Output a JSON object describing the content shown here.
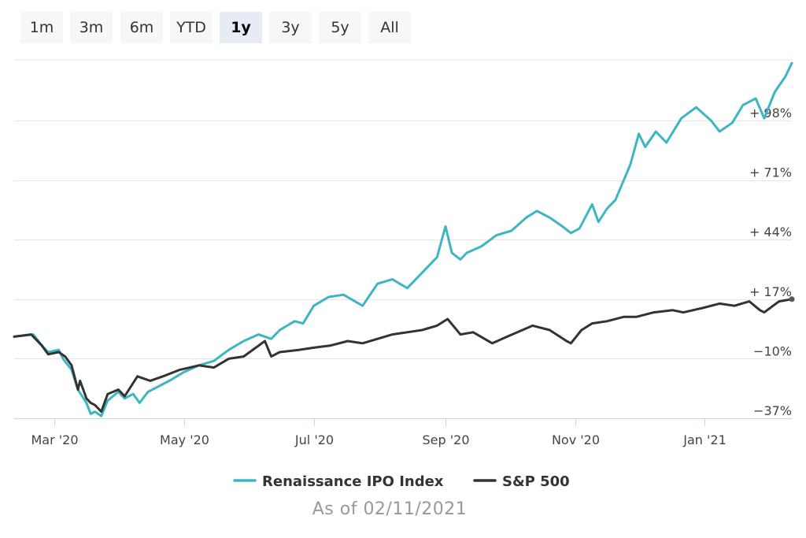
{
  "range_buttons": [
    {
      "label": "1m",
      "selected": false
    },
    {
      "label": "3m",
      "selected": false
    },
    {
      "label": "6m",
      "selected": false
    },
    {
      "label": "YTD",
      "selected": false
    },
    {
      "label": "1y",
      "selected": true
    },
    {
      "label": "3y",
      "selected": false
    },
    {
      "label": "5y",
      "selected": false
    },
    {
      "label": "All",
      "selected": false
    }
  ],
  "footer": {
    "as_of": "As of 02/11/2021"
  },
  "chart_data": {
    "type": "line",
    "title": "",
    "xlabel": "",
    "ylabel": "",
    "x_tick_labels": [
      "Mar '20",
      "May '20",
      "Jul '20",
      "Sep '20",
      "Nov '20",
      "Jan '21"
    ],
    "x_tick_dates": [
      "2020-03-01",
      "2020-05-01",
      "2020-07-01",
      "2020-09-01",
      "2020-11-01",
      "2021-01-01"
    ],
    "y_tick_labels": [
      "−37%",
      "−10%",
      "+ 17%",
      "+ 44%",
      "+ 71%",
      "+ 98%"
    ],
    "y_tick_values": [
      -37,
      -10,
      17,
      44,
      71,
      98
    ],
    "xlim": [
      "2020-02-11",
      "2021-02-11"
    ],
    "ylim": [
      -37,
      125
    ],
    "grid": true,
    "legend_position": "bottom-center",
    "series": [
      {
        "name": "Renaissance IPO Index",
        "color": "#3db5c3",
        "points": [
          [
            "2020-02-11",
            0
          ],
          [
            "2020-02-20",
            1
          ],
          [
            "2020-02-24",
            -4
          ],
          [
            "2020-02-27",
            -7
          ],
          [
            "2020-03-03",
            -6
          ],
          [
            "2020-03-05",
            -10
          ],
          [
            "2020-03-09",
            -15
          ],
          [
            "2020-03-12",
            -24
          ],
          [
            "2020-03-16",
            -30
          ],
          [
            "2020-03-18",
            -35
          ],
          [
            "2020-03-20",
            -34
          ],
          [
            "2020-03-23",
            -36
          ],
          [
            "2020-03-26",
            -29
          ],
          [
            "2020-03-31",
            -25
          ],
          [
            "2020-04-03",
            -28
          ],
          [
            "2020-04-07",
            -26
          ],
          [
            "2020-04-10",
            -30
          ],
          [
            "2020-04-14",
            -25
          ],
          [
            "2020-04-20",
            -22
          ],
          [
            "2020-04-24",
            -20
          ],
          [
            "2020-05-01",
            -16
          ],
          [
            "2020-05-08",
            -13
          ],
          [
            "2020-05-15",
            -11
          ],
          [
            "2020-05-22",
            -6
          ],
          [
            "2020-05-29",
            -2
          ],
          [
            "2020-06-05",
            1
          ],
          [
            "2020-06-11",
            -1
          ],
          [
            "2020-06-15",
            3
          ],
          [
            "2020-06-22",
            7
          ],
          [
            "2020-06-26",
            6
          ],
          [
            "2020-07-01",
            14
          ],
          [
            "2020-07-08",
            18
          ],
          [
            "2020-07-15",
            19
          ],
          [
            "2020-07-24",
            14
          ],
          [
            "2020-07-31",
            24
          ],
          [
            "2020-08-07",
            26
          ],
          [
            "2020-08-14",
            22
          ],
          [
            "2020-08-21",
            29
          ],
          [
            "2020-08-28",
            36
          ],
          [
            "2020-09-01",
            50
          ],
          [
            "2020-09-04",
            38
          ],
          [
            "2020-09-08",
            35
          ],
          [
            "2020-09-11",
            38
          ],
          [
            "2020-09-18",
            41
          ],
          [
            "2020-09-25",
            46
          ],
          [
            "2020-10-02",
            48
          ],
          [
            "2020-10-09",
            54
          ],
          [
            "2020-10-14",
            57
          ],
          [
            "2020-10-20",
            54
          ],
          [
            "2020-10-26",
            50
          ],
          [
            "2020-10-30",
            47
          ],
          [
            "2020-11-03",
            49
          ],
          [
            "2020-11-09",
            60
          ],
          [
            "2020-11-12",
            52
          ],
          [
            "2020-11-16",
            58
          ],
          [
            "2020-11-20",
            62
          ],
          [
            "2020-11-27",
            78
          ],
          [
            "2020-12-01",
            92
          ],
          [
            "2020-12-04",
            86
          ],
          [
            "2020-12-09",
            93
          ],
          [
            "2020-12-14",
            88
          ],
          [
            "2020-12-21",
            99
          ],
          [
            "2020-12-28",
            104
          ],
          [
            "2021-01-04",
            98
          ],
          [
            "2021-01-08",
            93
          ],
          [
            "2021-01-14",
            97
          ],
          [
            "2021-01-19",
            105
          ],
          [
            "2021-01-25",
            108
          ],
          [
            "2021-01-29",
            99
          ],
          [
            "2021-02-03",
            111
          ],
          [
            "2021-02-08",
            118
          ],
          [
            "2021-02-11",
            124
          ]
        ]
      },
      {
        "name": "S&P 500",
        "color": "#333333",
        "points": [
          [
            "2020-02-11",
            0
          ],
          [
            "2020-02-19",
            1
          ],
          [
            "2020-02-24",
            -4
          ],
          [
            "2020-02-27",
            -8
          ],
          [
            "2020-03-03",
            -7
          ],
          [
            "2020-03-06",
            -9
          ],
          [
            "2020-03-09",
            -13
          ],
          [
            "2020-03-12",
            -24
          ],
          [
            "2020-03-13",
            -20
          ],
          [
            "2020-03-16",
            -28
          ],
          [
            "2020-03-18",
            -30
          ],
          [
            "2020-03-20",
            -31
          ],
          [
            "2020-03-23",
            -34
          ],
          [
            "2020-03-26",
            -26
          ],
          [
            "2020-03-31",
            -24
          ],
          [
            "2020-04-03",
            -27
          ],
          [
            "2020-04-09",
            -18
          ],
          [
            "2020-04-15",
            -20
          ],
          [
            "2020-04-21",
            -18
          ],
          [
            "2020-04-29",
            -15
          ],
          [
            "2020-05-08",
            -13
          ],
          [
            "2020-05-15",
            -14
          ],
          [
            "2020-05-22",
            -10
          ],
          [
            "2020-05-29",
            -9
          ],
          [
            "2020-06-08",
            -2
          ],
          [
            "2020-06-11",
            -9
          ],
          [
            "2020-06-15",
            -7
          ],
          [
            "2020-06-24",
            -6
          ],
          [
            "2020-07-01",
            -5
          ],
          [
            "2020-07-09",
            -4
          ],
          [
            "2020-07-17",
            -2
          ],
          [
            "2020-07-24",
            -3
          ],
          [
            "2020-07-31",
            -1
          ],
          [
            "2020-08-07",
            1
          ],
          [
            "2020-08-14",
            2
          ],
          [
            "2020-08-21",
            3
          ],
          [
            "2020-08-28",
            5
          ],
          [
            "2020-09-02",
            8
          ],
          [
            "2020-09-08",
            1
          ],
          [
            "2020-09-14",
            2
          ],
          [
            "2020-09-23",
            -3
          ],
          [
            "2020-09-30",
            0
          ],
          [
            "2020-10-12",
            5
          ],
          [
            "2020-10-20",
            3
          ],
          [
            "2020-10-28",
            -2
          ],
          [
            "2020-10-30",
            -3
          ],
          [
            "2020-11-04",
            3
          ],
          [
            "2020-11-09",
            6
          ],
          [
            "2020-11-16",
            7
          ],
          [
            "2020-11-24",
            9
          ],
          [
            "2020-11-30",
            9
          ],
          [
            "2020-12-08",
            11
          ],
          [
            "2020-12-17",
            12
          ],
          [
            "2020-12-22",
            11
          ],
          [
            "2020-12-31",
            13
          ],
          [
            "2021-01-08",
            15
          ],
          [
            "2021-01-15",
            14
          ],
          [
            "2021-01-22",
            16
          ],
          [
            "2021-01-27",
            12
          ],
          [
            "2021-01-29",
            11
          ],
          [
            "2021-02-05",
            16
          ],
          [
            "2021-02-11",
            17
          ]
        ]
      }
    ]
  }
}
